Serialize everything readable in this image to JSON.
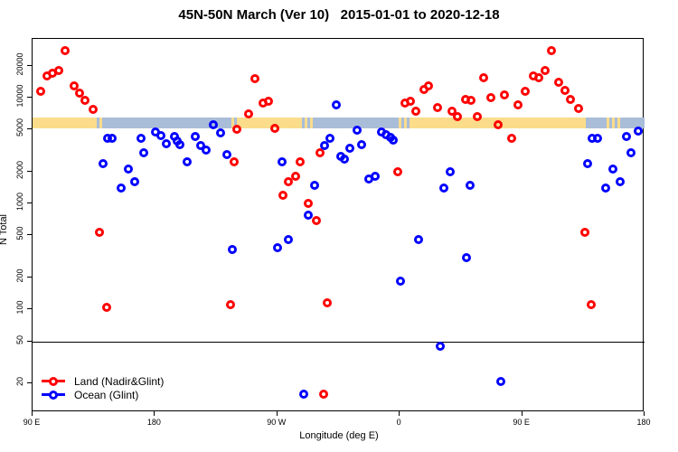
{
  "chart_data": {
    "type": "scatter",
    "title": "45N-50N March (Ver 10)   2015-01-01 to 2020-12-18",
    "xlabel": "Longitude (deg E)",
    "ylabel": "N Total",
    "grid": false,
    "legend_position": "bottom-left-inside",
    "colors": {
      "land": "#FF0000",
      "ocean": "#0000FF",
      "strip_land": "#FADC8B",
      "strip_ocean": "#A9BDD9",
      "axis": "#000000"
    },
    "x_axis": {
      "range": [
        90,
        540
      ],
      "ticks": [
        {
          "lon": 90,
          "label": "90 E"
        },
        {
          "lon": 180,
          "label": "180"
        },
        {
          "lon": 270,
          "label": "90 W"
        },
        {
          "lon": 360,
          "label": "0"
        },
        {
          "lon": 450,
          "label": "90 E"
        },
        {
          "lon": 540,
          "label": "180"
        }
      ]
    },
    "y_axis": {
      "scale": "log",
      "range": [
        10.7,
        35860
      ],
      "ticks": [
        20,
        50,
        100,
        200,
        500,
        1000,
        2000,
        5000,
        10000,
        20000
      ]
    },
    "reference_line_y": 50,
    "land_ocean_strip": {
      "value_range": [
        5100,
        6500
      ],
      "segments": [
        {
          "from": 90,
          "to": 135,
          "type": "land"
        },
        {
          "from": 135,
          "to": 143,
          "type": "mixed"
        },
        {
          "from": 143,
          "to": 236,
          "type": "ocean"
        },
        {
          "from": 236,
          "to": 240,
          "type": "mixed"
        },
        {
          "from": 240,
          "to": 286,
          "type": "land"
        },
        {
          "from": 286,
          "to": 298,
          "type": "mixed"
        },
        {
          "from": 298,
          "to": 359,
          "type": "ocean"
        },
        {
          "from": 359,
          "to": 368,
          "type": "mixed"
        },
        {
          "from": 368,
          "to": 497,
          "type": "land"
        },
        {
          "from": 497,
          "to": 512,
          "type": "ocean"
        },
        {
          "from": 512,
          "to": 524,
          "type": "mixed"
        },
        {
          "from": 524,
          "to": 540,
          "type": "ocean"
        }
      ]
    },
    "series": [
      {
        "name": "Land (Nadir&Glint)",
        "color": "#FF0000",
        "points": [
          [
            96,
            11500
          ],
          [
            100.6,
            16000
          ],
          [
            104.6,
            17000
          ],
          [
            109.3,
            18000
          ],
          [
            113.9,
            28000
          ],
          [
            120.6,
            13000
          ],
          [
            124.5,
            11000
          ],
          [
            128.5,
            9400
          ],
          [
            134.5,
            7700
          ],
          [
            139.2,
            530
          ],
          [
            144.5,
            105
          ],
          [
            235.6,
            110
          ],
          [
            238.2,
            2500
          ],
          [
            240,
            5000
          ],
          [
            248.9,
            7000
          ],
          [
            253.5,
            15000
          ],
          [
            259.5,
            8900
          ],
          [
            263.5,
            9200
          ],
          [
            268.1,
            5100
          ],
          [
            273.9,
            1200
          ],
          [
            278.1,
            1600
          ],
          [
            283.4,
            1800
          ],
          [
            286.7,
            2500
          ],
          [
            292.7,
            1000
          ],
          [
            298.7,
            690
          ],
          [
            301.3,
            3000
          ],
          [
            303.9,
            16
          ],
          [
            306.7,
            115
          ],
          [
            358.3,
            2000
          ],
          [
            363.8,
            8900
          ],
          [
            367.6,
            9200
          ],
          [
            372,
            7400
          ],
          [
            377.6,
            12000
          ],
          [
            380.9,
            13000
          ],
          [
            387.5,
            8000
          ],
          [
            398.2,
            7500
          ],
          [
            402.5,
            6600
          ],
          [
            408.1,
            9700
          ],
          [
            412.5,
            9400
          ],
          [
            417,
            6600
          ],
          [
            421.4,
            15500
          ],
          [
            427,
            10000
          ],
          [
            432.5,
            5500
          ],
          [
            437,
            10500
          ],
          [
            442.5,
            4100
          ],
          [
            447,
            8500
          ],
          [
            452.5,
            11400
          ],
          [
            458,
            16000
          ],
          [
            462.4,
            15500
          ],
          [
            466.9,
            18000
          ],
          [
            471.3,
            28000
          ],
          [
            476.8,
            14000
          ],
          [
            481.3,
            11600
          ],
          [
            485.7,
            9700
          ],
          [
            491.3,
            7900
          ],
          [
            496.3,
            530
          ],
          [
            500.6,
            110
          ]
        ]
      },
      {
        "name": "Ocean (Glint)",
        "color": "#0000FF",
        "points": [
          [
            141.6,
            2400
          ],
          [
            145,
            4100
          ],
          [
            148.7,
            4100
          ],
          [
            154.9,
            1400
          ],
          [
            160.2,
            2100
          ],
          [
            165.3,
            1600
          ],
          [
            169.8,
            4100
          ],
          [
            172,
            3000
          ],
          [
            180.4,
            4700
          ],
          [
            184.2,
            4400
          ],
          [
            188.6,
            3700
          ],
          [
            194.2,
            4300
          ],
          [
            196.4,
            3900
          ],
          [
            198.6,
            3600
          ],
          [
            203.6,
            2500
          ],
          [
            209.7,
            4300
          ],
          [
            213.6,
            3500
          ],
          [
            217.4,
            3200
          ],
          [
            222.9,
            5500
          ],
          [
            228.5,
            4600
          ],
          [
            232.9,
            2900
          ],
          [
            236.9,
            370
          ],
          [
            270.1,
            380
          ],
          [
            273.5,
            2500
          ],
          [
            277.9,
            460
          ],
          [
            289.4,
            16
          ],
          [
            292.7,
            770
          ],
          [
            297.4,
            1500
          ],
          [
            304.5,
            3500
          ],
          [
            308.9,
            4100
          ],
          [
            313.3,
            8500
          ],
          [
            316.7,
            2800
          ],
          [
            319,
            2650
          ],
          [
            323.3,
            3300
          ],
          [
            328.9,
            4900
          ],
          [
            332.1,
            3600
          ],
          [
            337.1,
            1700
          ],
          [
            342.1,
            1800
          ],
          [
            346.6,
            4700
          ],
          [
            349.9,
            4500
          ],
          [
            353.2,
            4200
          ],
          [
            355.4,
            4000
          ],
          [
            360.5,
            185
          ],
          [
            373.6,
            460
          ],
          [
            390,
            45
          ],
          [
            392.4,
            1400
          ],
          [
            397,
            2000
          ],
          [
            408.8,
            310
          ],
          [
            411.5,
            1500
          ],
          [
            434.3,
            21
          ],
          [
            498.3,
            2400
          ],
          [
            501.2,
            4100
          ],
          [
            505.2,
            4100
          ],
          [
            511.6,
            1400
          ],
          [
            516.7,
            2100
          ],
          [
            522.2,
            1600
          ],
          [
            526.6,
            4300
          ],
          [
            530,
            3000
          ],
          [
            535.5,
            4800
          ]
        ]
      }
    ],
    "legend": {
      "items": [
        {
          "label": "Land (Nadir&Glint)",
          "color": "#FF0000"
        },
        {
          "label": "Ocean (Glint)",
          "color": "#0000FF"
        }
      ]
    }
  }
}
